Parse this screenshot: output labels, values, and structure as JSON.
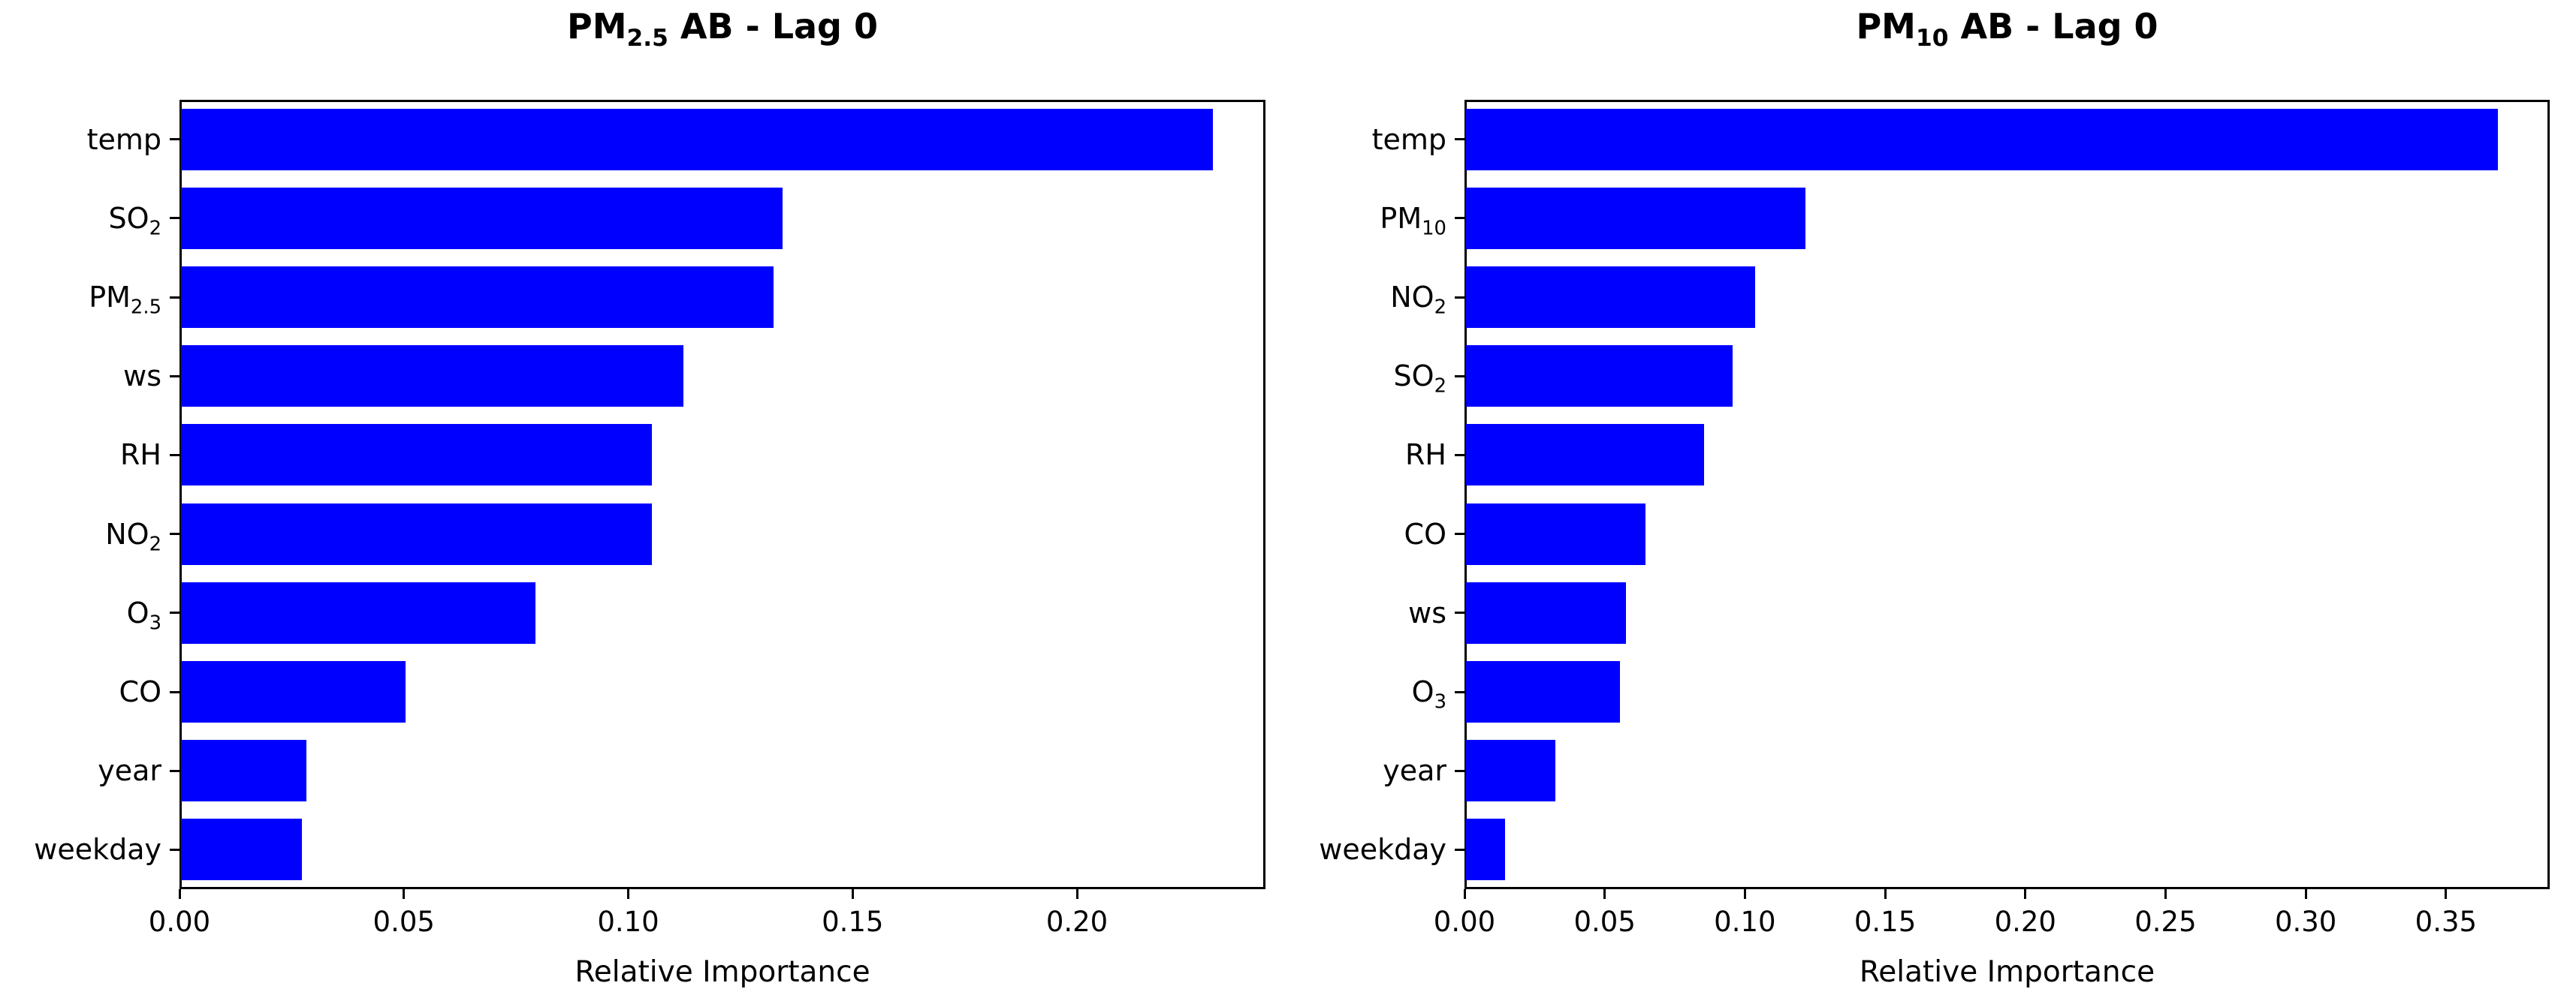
{
  "bar_color": "#0000ff",
  "text_color": "#000000",
  "chart_data": [
    {
      "type": "bar",
      "orientation": "horizontal",
      "title": "PM_{2.5} AB - Lag 0",
      "categories": [
        "temp",
        "SO_{2}",
        "PM_{2.5}",
        "ws",
        "RH",
        "NO_{2}",
        "O_{3}",
        "CO",
        "year",
        "weekday"
      ],
      "values": [
        0.23,
        0.134,
        0.132,
        0.112,
        0.105,
        0.105,
        0.079,
        0.05,
        0.028,
        0.027
      ],
      "xlabel": "Relative Importance",
      "ylabel": "",
      "xlim": [
        0,
        0.242
      ],
      "xticks": [
        0.0,
        0.05,
        0.1,
        0.15,
        0.2
      ],
      "xtick_labels": [
        "0.00",
        "0.05",
        "0.10",
        "0.15",
        "0.20"
      ],
      "grid": false,
      "legend": null
    },
    {
      "type": "bar",
      "orientation": "horizontal",
      "title": "PM_{10} AB - Lag 0",
      "categories": [
        "temp",
        "PM_{10}",
        "NO_{2}",
        "SO_{2}",
        "RH",
        "CO",
        "ws",
        "O_{3}",
        "year",
        "weekday"
      ],
      "values": [
        0.368,
        0.121,
        0.103,
        0.095,
        0.085,
        0.064,
        0.057,
        0.055,
        0.032,
        0.014
      ],
      "xlabel": "Relative Importance",
      "ylabel": "",
      "xlim": [
        0,
        0.387
      ],
      "xticks": [
        0.0,
        0.05,
        0.1,
        0.15,
        0.2,
        0.25,
        0.3,
        0.35
      ],
      "xtick_labels": [
        "0.00",
        "0.05",
        "0.10",
        "0.15",
        "0.20",
        "0.25",
        "0.30",
        "0.35"
      ],
      "grid": false,
      "legend": null
    }
  ]
}
